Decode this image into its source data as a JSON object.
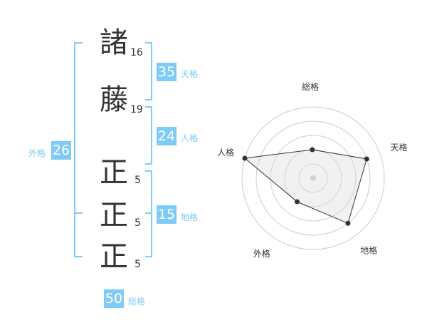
{
  "characters": [
    {
      "char": "諸",
      "strokes": "16"
    },
    {
      "char": "藤",
      "strokes": "19"
    },
    {
      "char": "正",
      "strokes": "5"
    },
    {
      "char": "正",
      "strokes": "5"
    },
    {
      "char": "正",
      "strokes": "5"
    }
  ],
  "fortunes": {
    "tenkaku": {
      "label": "天格",
      "value": "35"
    },
    "jinkaku": {
      "label": "人格",
      "value": "24"
    },
    "chikaku": {
      "label": "地格",
      "value": "15"
    },
    "gaikaku": {
      "label": "外格",
      "value": "26"
    },
    "soukaku": {
      "label": "総格",
      "value": "50"
    }
  },
  "colors": {
    "accent": "#7fcbf5",
    "text": "#333333"
  },
  "chart_data": {
    "type": "radar",
    "axes": [
      "総格",
      "天格",
      "地格",
      "外格",
      "人格"
    ],
    "values": [
      2,
      4,
      4,
      2,
      5
    ],
    "range": [
      0,
      5
    ]
  }
}
